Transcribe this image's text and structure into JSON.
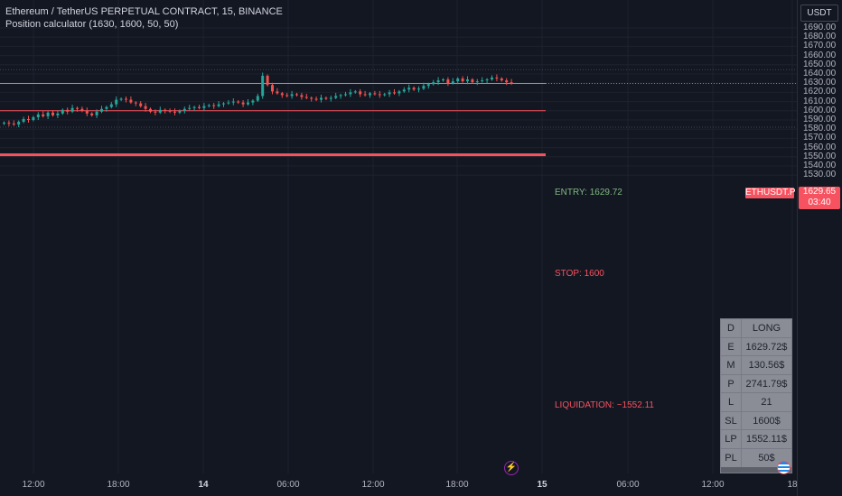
{
  "header": {
    "title": "Ethereum / TetherUS PERPETUAL CONTRACT, 15, BINANCE",
    "indicator": "Position calculator (1630, 1600, 50, 50)"
  },
  "currency_button": "USDT",
  "symbol_badge": "ETHUSDT.P",
  "last_price": {
    "value": "1629.65",
    "countdown": "03:40"
  },
  "colors": {
    "up": "#26a69a",
    "down": "#ef5350",
    "entry": "#a5d6a7",
    "stop": "#f7525f",
    "liquidation": "#f7525f",
    "background": "#131722",
    "grid": "#1e222d"
  },
  "levels": [
    {
      "label": "ENTRY: 1629.72",
      "price": 1629.72,
      "color": "#7fb87f",
      "style": "solid"
    },
    {
      "label": "STOP: 1600",
      "price": 1600,
      "color": "#f7525f",
      "style": "solid"
    },
    {
      "label": "LIQUIDATION: ~1552.11",
      "price": 1552.11,
      "color": "#f7525f",
      "style": "thick"
    }
  ],
  "dotted_levels": [
    1644.6,
    1582.2
  ],
  "position_table": [
    {
      "key": "D",
      "value": "LONG"
    },
    {
      "key": "E",
      "value": "1629.72$"
    },
    {
      "key": "M",
      "value": "130.56$"
    },
    {
      "key": "P",
      "value": "2741.79$"
    },
    {
      "key": "L",
      "value": "21"
    },
    {
      "key": "SL",
      "value": "1600$"
    },
    {
      "key": "LP",
      "value": "1552.11$"
    },
    {
      "key": "PL",
      "value": "50$"
    }
  ],
  "icons": {
    "replay": "lightning-icon",
    "flag": "us-flag-icon"
  },
  "chart_data": {
    "type": "candlestick",
    "symbol": "ETHUSDT.P",
    "interval": "15",
    "y_axis": {
      "ticks": [
        1690,
        1680,
        1670,
        1660,
        1650,
        1640,
        1630,
        1620,
        1610,
        1600,
        1590,
        1580,
        1570,
        1560,
        1550,
        1540,
        1530
      ],
      "tick_labels": [
        "1690.00",
        "1680.00",
        "1670.00",
        "1660.00",
        "1650.00",
        "1640.00",
        "1630.00",
        "1620.00",
        "1610.00",
        "1600.00",
        "1590.00",
        "1580.00",
        "1570.00",
        "1560.00",
        "1550.00",
        "1540.00",
        "1530.00"
      ],
      "range": [
        1526,
        1693
      ]
    },
    "x_axis": {
      "labels": [
        "12:00",
        "18:00",
        "14",
        "06:00",
        "12:00",
        "18:00",
        "15",
        "06:00",
        "12:00",
        "18"
      ],
      "bold_labels": [
        "14",
        "15"
      ]
    },
    "candles_close_series": [
      1587,
      1586,
      1585,
      1588,
      1591,
      1590,
      1593,
      1596,
      1594,
      1598,
      1595,
      1597,
      1601,
      1599,
      1603,
      1602,
      1600,
      1597,
      1595,
      1599,
      1602,
      1604,
      1607,
      1612,
      1613,
      1612,
      1609,
      1608,
      1605,
      1602,
      1599,
      1598,
      1601,
      1600,
      1599,
      1598,
      1600,
      1602,
      1603,
      1604,
      1603,
      1605,
      1606,
      1605,
      1607,
      1608,
      1609,
      1610,
      1609,
      1607,
      1609,
      1611,
      1616,
      1638,
      1628,
      1621,
      1619,
      1617,
      1616,
      1618,
      1617,
      1615,
      1614,
      1613,
      1612,
      1614,
      1613,
      1614,
      1616,
      1617,
      1618,
      1620,
      1621,
      1618,
      1617,
      1619,
      1618,
      1617,
      1618,
      1620,
      1619,
      1621,
      1623,
      1625,
      1623,
      1624,
      1627,
      1629,
      1631,
      1633,
      1634,
      1630,
      1632,
      1635,
      1632,
      1634,
      1631,
      1632,
      1633,
      1634,
      1636,
      1635,
      1633,
      1631,
      1629.65
    ]
  }
}
